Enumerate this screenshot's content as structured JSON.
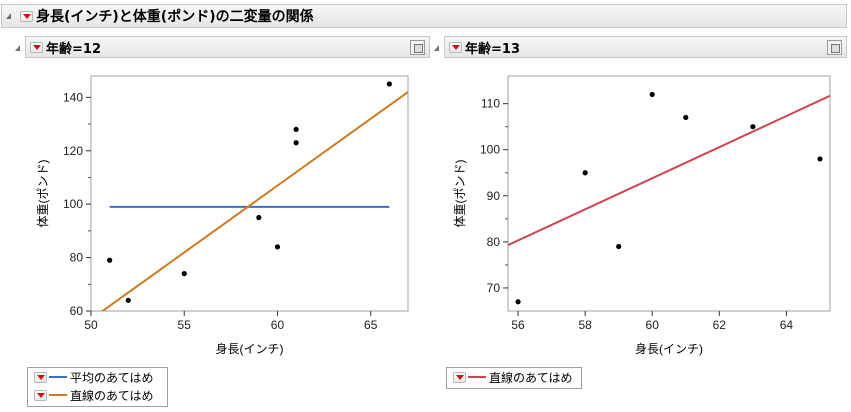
{
  "report": {
    "title": "身長(インチ)と体重(ポンド)の二変量の関係"
  },
  "panels": [
    {
      "title": "年齢=12",
      "xlabel": "身長(インチ)",
      "ylabel": "体重(ポンド)",
      "legend": [
        {
          "label": "平均のあてはめ",
          "color": "#3a6fd0"
        },
        {
          "label": "直線のあてはめ",
          "color": "#d07a1e"
        }
      ]
    },
    {
      "title": "年齢=13",
      "xlabel": "身長(インチ)",
      "ylabel": "体重(ポンド)",
      "legend": [
        {
          "label": "直線のあてはめ",
          "color": "#d0454f"
        }
      ]
    }
  ],
  "chart_data": [
    {
      "type": "scatter",
      "xlabel": "身長(インチ)",
      "ylabel": "体重(ポンド)",
      "xlim": [
        50,
        67
      ],
      "ylim": [
        60,
        148
      ],
      "xticks": [
        50,
        55,
        60,
        65
      ],
      "yticks": [
        60,
        80,
        100,
        120,
        140
      ],
      "x": [
        51,
        52,
        55,
        59,
        60,
        61,
        61,
        66
      ],
      "y": [
        79,
        64,
        74,
        95,
        84,
        123,
        128,
        145
      ],
      "fits": [
        {
          "name": "平均のあてはめ",
          "color": "#3a6fd0",
          "x": [
            51,
            66
          ],
          "y": [
            99,
            99
          ]
        },
        {
          "name": "直線のあてはめ",
          "color": "#d07a1e",
          "x": [
            50.5,
            67
          ],
          "y": [
            59.4,
            142
          ]
        }
      ]
    },
    {
      "type": "scatter",
      "xlabel": "身長(インチ)",
      "ylabel": "体重(ポンド)",
      "xlim": [
        55.7,
        65.3
      ],
      "ylim": [
        65,
        116
      ],
      "xticks": [
        56,
        58,
        60,
        62,
        64
      ],
      "yticks": [
        70,
        80,
        90,
        100,
        110
      ],
      "x": [
        56,
        58,
        59,
        60,
        61,
        63,
        65
      ],
      "y": [
        67,
        95,
        79,
        112,
        107,
        105,
        98
      ],
      "fits": [
        {
          "name": "直線のあてはめ",
          "color": "#d0454f",
          "x": [
            55.7,
            65.3
          ],
          "y": [
            79.3,
            111.7
          ]
        }
      ]
    }
  ]
}
